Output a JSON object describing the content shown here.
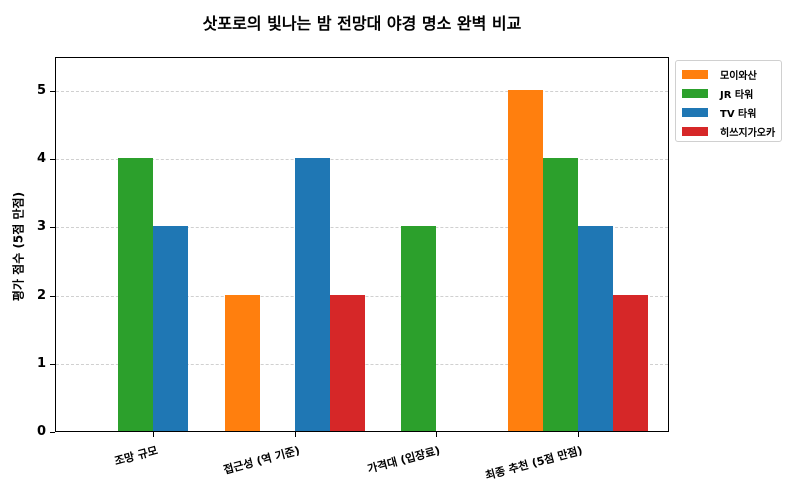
{
  "chart_data": {
    "type": "bar",
    "title": "삿포로의 빛나는 밤 전망대 야경 명소 완벽 비교",
    "xlabel": "",
    "ylabel": "평가 점수 (5점 만점)",
    "ylim": [
      0,
      5.5
    ],
    "yticks": [
      "0",
      "1",
      "2",
      "3",
      "4",
      "5"
    ],
    "grid": true,
    "legend_position": "upper right outside",
    "categories": [
      "조망 규모",
      "접근성 (역 기준)",
      "가격대 (입장료)",
      "최종 추천 (5점 만점)"
    ],
    "series": [
      {
        "name": "모이와산",
        "color": "#ff7f0e",
        "values": [
          0,
          2,
          0,
          5
        ]
      },
      {
        "name": "JR 타워",
        "color": "#2ca02c",
        "values": [
          4,
          0,
          3,
          4
        ]
      },
      {
        "name": "TV 타워",
        "color": "#1f77b4",
        "values": [
          3,
          4,
          0,
          3
        ]
      },
      {
        "name": "히쓰지가오카",
        "color": "#d62728",
        "values": [
          0,
          2,
          0,
          2
        ]
      }
    ]
  }
}
